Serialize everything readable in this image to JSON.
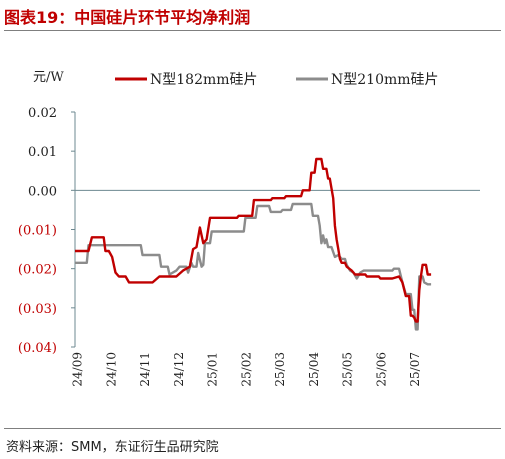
{
  "title": "图表19：中国硅片环节平均净利润",
  "source": "资料来源：SMM，东证衍生品研究院",
  "colors": {
    "series_182": "#c00000",
    "series_210": "#8c8c8c",
    "axis": "#6d8890"
  },
  "chart_data": {
    "type": "line",
    "ylabel": "元/W",
    "ylim": [
      -0.04,
      0.02
    ],
    "yticks": [
      {
        "value": 0.02,
        "label": "0.02"
      },
      {
        "value": 0.01,
        "label": "0.01"
      },
      {
        "value": 0.0,
        "label": "0.00"
      },
      {
        "value": -0.01,
        "label": "(0.01)"
      },
      {
        "value": -0.02,
        "label": "(0.02)"
      },
      {
        "value": -0.03,
        "label": "(0.03)"
      },
      {
        "value": -0.04,
        "label": "(0.04)"
      }
    ],
    "x_start": "24/09",
    "x_end": "25/08",
    "xticks": [
      "24/09",
      "24/10",
      "24/11",
      "24/12",
      "25/01",
      "25/02",
      "25/03",
      "25/04",
      "25/05",
      "25/06",
      "25/07"
    ],
    "legend_position": "top",
    "series": [
      {
        "name": "N型182mm硅片",
        "color": "#c00000",
        "points": [
          [
            0.0,
            -0.0155
          ],
          [
            0.4,
            -0.0155
          ],
          [
            0.5,
            -0.012
          ],
          [
            0.85,
            -0.012
          ],
          [
            0.9,
            -0.0155
          ],
          [
            1.0,
            -0.0155
          ],
          [
            1.1,
            -0.017
          ],
          [
            1.2,
            -0.021
          ],
          [
            1.3,
            -0.022
          ],
          [
            1.5,
            -0.022
          ],
          [
            1.6,
            -0.0235
          ],
          [
            2.0,
            -0.0235
          ],
          [
            2.3,
            -0.0235
          ],
          [
            2.5,
            -0.022
          ],
          [
            3.0,
            -0.022
          ],
          [
            3.2,
            -0.0205
          ],
          [
            3.4,
            -0.0195
          ],
          [
            3.5,
            -0.015
          ],
          [
            3.6,
            -0.0145
          ],
          [
            3.7,
            -0.0095
          ],
          [
            3.8,
            -0.0135
          ],
          [
            3.9,
            -0.0125
          ],
          [
            4.0,
            -0.007
          ],
          [
            4.8,
            -0.007
          ],
          [
            4.85,
            -0.0065
          ],
          [
            5.25,
            -0.0065
          ],
          [
            5.3,
            -0.0025
          ],
          [
            5.8,
            -0.0025
          ],
          [
            5.85,
            -0.002
          ],
          [
            6.2,
            -0.002
          ],
          [
            6.25,
            -0.0015
          ],
          [
            6.7,
            -0.0015
          ],
          [
            6.75,
            0.0
          ],
          [
            6.95,
            0.0
          ],
          [
            7.0,
            0.0045
          ],
          [
            7.1,
            0.0045
          ],
          [
            7.15,
            0.008
          ],
          [
            7.3,
            0.008
          ],
          [
            7.35,
            0.0055
          ],
          [
            7.45,
            0.0055
          ],
          [
            7.5,
            0.003
          ],
          [
            7.55,
            0.003
          ],
          [
            7.6,
            0.0005
          ],
          [
            7.65,
            -0.002
          ],
          [
            7.7,
            -0.009
          ],
          [
            7.75,
            -0.0125
          ],
          [
            7.8,
            -0.015
          ],
          [
            7.85,
            -0.0175
          ],
          [
            7.9,
            -0.0185
          ],
          [
            8.0,
            -0.0185
          ],
          [
            8.05,
            -0.0195
          ],
          [
            8.2,
            -0.0205
          ],
          [
            8.3,
            -0.0215
          ],
          [
            8.6,
            -0.0215
          ],
          [
            8.65,
            -0.022
          ],
          [
            9.0,
            -0.022
          ],
          [
            9.05,
            -0.0225
          ],
          [
            9.4,
            -0.0225
          ],
          [
            9.6,
            -0.022
          ],
          [
            9.7,
            -0.0235
          ],
          [
            9.8,
            -0.027
          ],
          [
            9.9,
            -0.027
          ],
          [
            9.95,
            -0.032
          ],
          [
            10.0,
            -0.032
          ],
          [
            10.05,
            -0.0325
          ],
          [
            10.1,
            -0.0335
          ],
          [
            10.15,
            -0.0335
          ],
          [
            10.2,
            -0.0255
          ],
          [
            10.25,
            -0.022
          ],
          [
            10.3,
            -0.019
          ],
          [
            10.4,
            -0.019
          ],
          [
            10.45,
            -0.0215
          ],
          [
            10.55,
            -0.0215
          ]
        ]
      },
      {
        "name": "N型210mm硅片",
        "color": "#8c8c8c",
        "points": [
          [
            0.0,
            -0.0185
          ],
          [
            0.35,
            -0.0185
          ],
          [
            0.4,
            -0.014
          ],
          [
            1.2,
            -0.014
          ],
          [
            1.25,
            -0.014
          ],
          [
            1.95,
            -0.014
          ],
          [
            2.0,
            -0.0165
          ],
          [
            2.5,
            -0.0165
          ],
          [
            2.55,
            -0.0195
          ],
          [
            2.75,
            -0.0195
          ],
          [
            2.8,
            -0.0215
          ],
          [
            3.0,
            -0.0205
          ],
          [
            3.1,
            -0.0195
          ],
          [
            3.3,
            -0.0195
          ],
          [
            3.35,
            -0.021
          ],
          [
            3.45,
            -0.0185
          ],
          [
            3.5,
            -0.0195
          ],
          [
            3.6,
            -0.0195
          ],
          [
            3.65,
            -0.016
          ],
          [
            3.75,
            -0.0195
          ],
          [
            3.8,
            -0.019
          ],
          [
            3.85,
            -0.0135
          ],
          [
            4.0,
            -0.0135
          ],
          [
            4.05,
            -0.0105
          ],
          [
            4.95,
            -0.0105
          ],
          [
            5.0,
            -0.0105
          ],
          [
            5.05,
            -0.007
          ],
          [
            5.35,
            -0.007
          ],
          [
            5.4,
            -0.004
          ],
          [
            5.75,
            -0.004
          ],
          [
            5.8,
            -0.0055
          ],
          [
            6.0,
            -0.0055
          ],
          [
            6.1,
            -0.0055
          ],
          [
            6.15,
            -0.005
          ],
          [
            6.4,
            -0.005
          ],
          [
            6.45,
            -0.0035
          ],
          [
            7.0,
            -0.0035
          ],
          [
            7.05,
            -0.0065
          ],
          [
            7.2,
            -0.0065
          ],
          [
            7.25,
            -0.009
          ],
          [
            7.3,
            -0.0135
          ],
          [
            7.35,
            -0.0115
          ],
          [
            7.4,
            -0.0135
          ],
          [
            7.45,
            -0.0125
          ],
          [
            7.5,
            -0.0145
          ],
          [
            7.6,
            -0.0145
          ],
          [
            7.7,
            -0.017
          ],
          [
            7.8,
            -0.0165
          ],
          [
            7.9,
            -0.0175
          ],
          [
            8.0,
            -0.0175
          ],
          [
            8.05,
            -0.019
          ],
          [
            8.15,
            -0.0205
          ],
          [
            8.25,
            -0.021
          ],
          [
            8.35,
            -0.0225
          ],
          [
            8.45,
            -0.021
          ],
          [
            8.55,
            -0.0205
          ],
          [
            9.4,
            -0.0205
          ],
          [
            9.45,
            -0.02
          ],
          [
            9.6,
            -0.02
          ],
          [
            9.7,
            -0.0235
          ],
          [
            9.8,
            -0.0265
          ],
          [
            9.95,
            -0.0265
          ],
          [
            10.0,
            -0.0305
          ],
          [
            10.05,
            -0.0305
          ],
          [
            10.1,
            -0.0355
          ],
          [
            10.15,
            -0.0355
          ],
          [
            10.2,
            -0.022
          ],
          [
            10.3,
            -0.022
          ],
          [
            10.35,
            -0.0235
          ],
          [
            10.45,
            -0.024
          ],
          [
            10.55,
            -0.024
          ]
        ]
      }
    ]
  }
}
